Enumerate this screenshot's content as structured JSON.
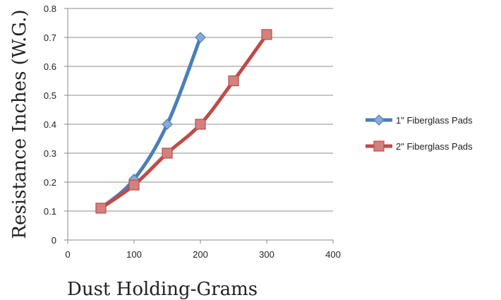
{
  "chart_data": {
    "type": "line",
    "title": "",
    "xlabel": "Dust Holding-Grams",
    "ylabel": "Resistance Inches (W.G.)",
    "xlim": [
      0,
      400
    ],
    "ylim": [
      0,
      0.8
    ],
    "x_ticks": [
      "0",
      "100",
      "200",
      "300",
      "400"
    ],
    "y_ticks": [
      "0",
      "0.1",
      "0.2",
      "0.3",
      "0.4",
      "0.5",
      "0.6",
      "0.7",
      "0.8"
    ],
    "grid": "horizontal",
    "legend_position": "right",
    "series": [
      {
        "name": "1\" Fiberglass Pads",
        "color": "#4a7ebb",
        "marker": "diamond",
        "points": [
          [
            50,
            0.11
          ],
          [
            100,
            0.21
          ],
          [
            150,
            0.4
          ],
          [
            200,
            0.7
          ]
        ]
      },
      {
        "name": "2\" Fiberglass Pads",
        "color": "#be4b48",
        "marker": "square",
        "points": [
          [
            50,
            0.11
          ],
          [
            100,
            0.19
          ],
          [
            150,
            0.3
          ],
          [
            200,
            0.4
          ],
          [
            250,
            0.55
          ],
          [
            300,
            0.71
          ]
        ]
      }
    ]
  }
}
